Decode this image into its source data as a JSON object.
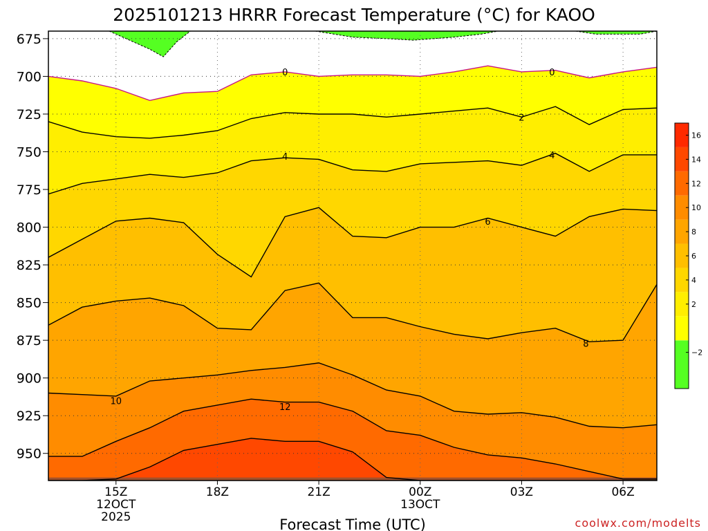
{
  "chart_data": {
    "type": "contour",
    "title": "2025101213 HRRR Forecast Temperature (°C) for KAOO",
    "xlabel": "Forecast Time (UTC)",
    "ylabel": "",
    "credit": "coolwx.com/modelts",
    "x_hours_from_first": [
      0,
      1,
      2,
      3,
      4,
      5,
      6,
      7,
      8,
      9,
      10,
      11,
      12,
      13,
      14,
      15,
      16,
      17,
      18
    ],
    "xlim": [
      0,
      18
    ],
    "ylim_pressure_hpa": [
      968,
      670
    ],
    "x_ticks": [
      {
        "hour": 2,
        "lines": [
          "15Z",
          "12OCT",
          "2025"
        ]
      },
      {
        "hour": 5,
        "lines": [
          "18Z"
        ]
      },
      {
        "hour": 8,
        "lines": [
          "21Z"
        ]
      },
      {
        "hour": 11,
        "lines": [
          "00Z",
          "13OCT"
        ]
      },
      {
        "hour": 14,
        "lines": [
          "03Z"
        ]
      },
      {
        "hour": 17,
        "lines": [
          "06Z"
        ]
      }
    ],
    "y_ticks": [
      "675",
      "700",
      "725",
      "750",
      "775",
      "800",
      "825",
      "850",
      "875",
      "900",
      "925",
      "950"
    ],
    "y_tick_values": [
      675,
      700,
      725,
      750,
      775,
      800,
      825,
      850,
      875,
      900,
      925,
      950
    ],
    "grid": "dotted",
    "fill_levels_c": [
      -2,
      0,
      2,
      4,
      6,
      8,
      10,
      12,
      14,
      16,
      18
    ],
    "fill_colors": [
      "#55ff22",
      "#ffffff",
      "#ffff00",
      "#ffee00",
      "#ffd700",
      "#ffbf00",
      "#ffa500",
      "#ff8c00",
      "#ff6a00",
      "#ff4800",
      "#ff2a00"
    ],
    "colorbar_ticks": [
      "−2",
      "2",
      "4",
      "6",
      "8",
      "10",
      "12",
      "14",
      "16"
    ],
    "colorbar_tick_values": [
      -2,
      2,
      4,
      6,
      8,
      10,
      12,
      14,
      16
    ],
    "colorbar_range": [
      -4,
      18
    ],
    "below_ground_color": "#a0522d",
    "isotherms": [
      {
        "temp_c": 0,
        "label": "0",
        "color": "#c71585",
        "pressure_hpa": [
          700,
          703,
          708,
          716,
          711,
          710,
          699,
          697,
          700,
          699,
          699,
          700,
          697,
          693,
          697,
          696,
          701,
          697,
          694
        ]
      },
      {
        "temp_c": 2,
        "label": "2",
        "color": "#000000",
        "pressure_hpa": [
          730,
          737,
          740,
          741,
          739,
          736,
          728,
          724,
          725,
          725,
          727,
          725,
          723,
          721,
          727,
          720,
          732,
          722,
          721
        ]
      },
      {
        "temp_c": 4,
        "label": "4",
        "color": "#000000",
        "pressure_hpa": [
          778,
          771,
          768,
          765,
          767,
          764,
          756,
          754,
          755,
          762,
          763,
          758,
          757,
          756,
          759,
          751,
          763,
          752,
          752
        ]
      },
      {
        "temp_c": 6,
        "label": "6",
        "color": "#000000",
        "pressure_hpa": [
          820,
          808,
          796,
          794,
          797,
          818,
          833,
          793,
          787,
          806,
          807,
          800,
          800,
          794,
          800,
          806,
          793,
          788,
          789
        ]
      },
      {
        "temp_c": 8,
        "label": "8",
        "color": "#000000",
        "pressure_hpa": [
          865,
          853,
          849,
          847,
          852,
          867,
          868,
          842,
          837,
          860,
          860,
          866,
          871,
          874,
          870,
          867,
          876,
          875,
          838
        ]
      },
      {
        "temp_c": 10,
        "label": "10",
        "color": "#000000",
        "pressure_hpa": [
          910,
          911,
          912,
          902,
          900,
          898,
          895,
          893,
          890,
          898,
          908,
          912,
          922,
          924,
          923,
          926,
          932,
          933,
          931
        ]
      },
      {
        "temp_c": 12,
        "label": "12",
        "color": "#000000",
        "pressure_hpa": [
          952,
          952,
          942,
          933,
          922,
          918,
          914,
          916,
          916,
          922,
          935,
          938,
          946,
          951,
          953,
          957,
          962,
          967,
          967
        ]
      },
      {
        "temp_c": 14,
        "label": "",
        "color": "#000000",
        "pressure_hpa": [
          968,
          968,
          967,
          959,
          948,
          944,
          940,
          942,
          942,
          949,
          966,
          968,
          968,
          968,
          968,
          968,
          968,
          968,
          968
        ]
      }
    ],
    "subfreezing_regions": [
      {
        "label": "",
        "hours": [
          1.8,
          2.4,
          3.0,
          3.4,
          3.8,
          4.2
        ],
        "top_hpa": 670,
        "bottom_hpa": [
          670,
          676,
          682,
          687,
          677,
          670
        ]
      },
      {
        "label": "",
        "hours": [
          7.9,
          9.0,
          10.0,
          10.8,
          12.0,
          12.8,
          13.3
        ],
        "top_hpa": 670,
        "bottom_hpa": [
          670,
          674,
          675,
          676,
          674,
          672,
          670
        ]
      },
      {
        "label": "",
        "hours": [
          15.6,
          16.2,
          16.8,
          17.5,
          18.0
        ],
        "top_hpa": 670,
        "bottom_hpa": [
          670,
          672,
          672,
          672,
          670
        ]
      }
    ],
    "contour_labels": [
      {
        "text": "0",
        "hour": 7.0,
        "pressure_hpa": 697
      },
      {
        "text": "0",
        "hour": 14.9,
        "pressure_hpa": 697
      },
      {
        "text": "2",
        "hour": 14.0,
        "pressure_hpa": 727
      },
      {
        "text": "4",
        "hour": 7.0,
        "pressure_hpa": 753
      },
      {
        "text": "4",
        "hour": 14.9,
        "pressure_hpa": 752
      },
      {
        "text": "6",
        "hour": 13.0,
        "pressure_hpa": 796
      },
      {
        "text": "8",
        "hour": 15.9,
        "pressure_hpa": 877
      },
      {
        "text": "10",
        "hour": 2.0,
        "pressure_hpa": 915
      },
      {
        "text": "12",
        "hour": 7.0,
        "pressure_hpa": 919
      }
    ]
  }
}
